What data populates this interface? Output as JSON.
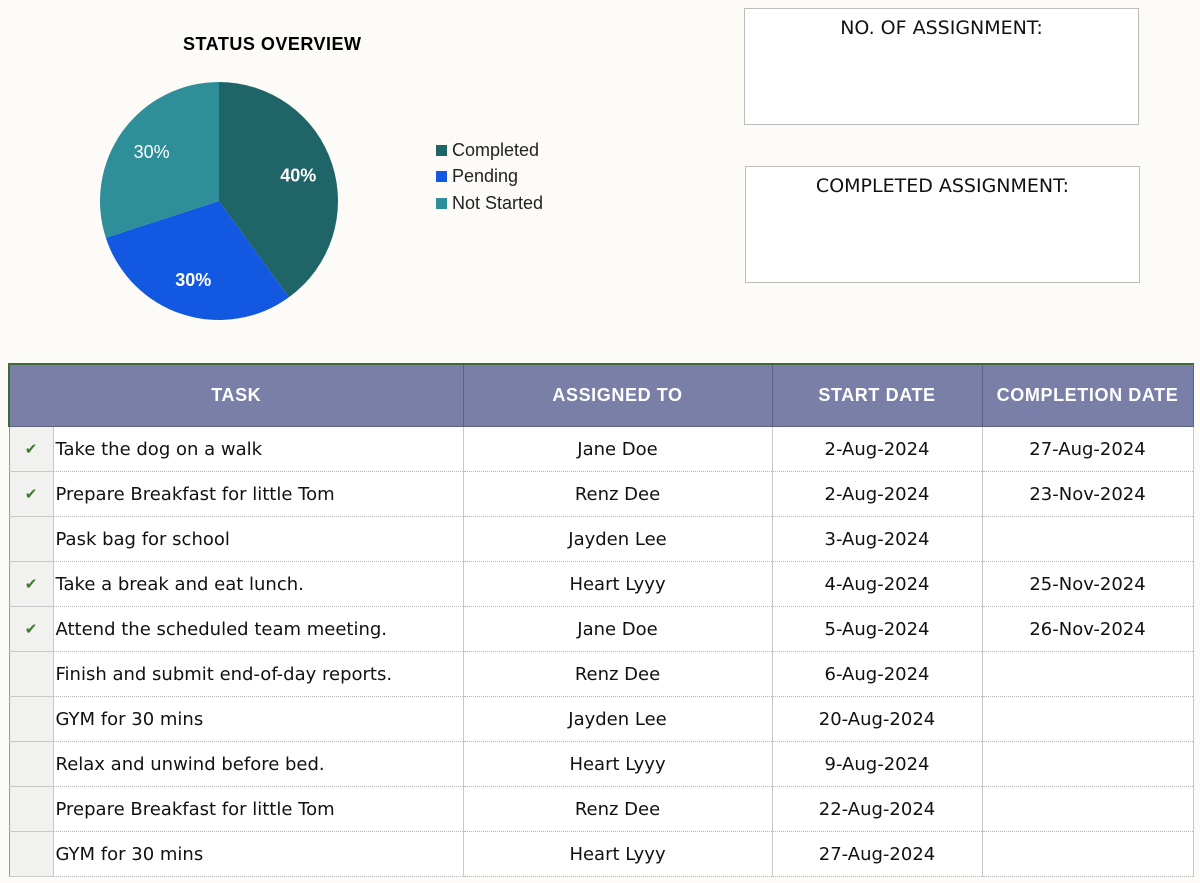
{
  "chart_data": {
    "type": "pie",
    "title": "STATUS OVERVIEW",
    "categories": [
      "Completed",
      "Pending",
      "Not Started"
    ],
    "values": [
      40,
      30,
      30
    ],
    "labels": [
      "40%",
      "30%",
      "30%"
    ],
    "colors": [
      "#1f6467",
      "#1258e0",
      "#2e8f98"
    ],
    "legend_position": "right"
  },
  "summary": {
    "no_of_assignment_label": "NO. OF ASSIGNMENT:",
    "completed_assignment_label": "COMPLETED ASSIGNMENT:"
  },
  "table": {
    "headers": {
      "task": "TASK",
      "assigned_to": "ASSIGNED TO",
      "start_date": "START DATE",
      "completion_date": "COMPLETION DATE"
    },
    "rows": [
      {
        "done": "✔",
        "task": "Take the dog on a walk",
        "assigned_to": "Jane Doe",
        "start_date": "2-Aug-2024",
        "completion_date": "27-Aug-2024"
      },
      {
        "done": "✔",
        "task": "Prepare Breakfast for little Tom",
        "assigned_to": "Renz Dee",
        "start_date": "2-Aug-2024",
        "completion_date": "23-Nov-2024"
      },
      {
        "done": "",
        "task": "Pask bag for school",
        "assigned_to": "Jayden Lee",
        "start_date": "3-Aug-2024",
        "completion_date": ""
      },
      {
        "done": "✔",
        "task": "Take a break and eat lunch.",
        "assigned_to": "Heart Lyyy",
        "start_date": "4-Aug-2024",
        "completion_date": "25-Nov-2024"
      },
      {
        "done": "✔",
        "task": "Attend the scheduled team meeting.",
        "assigned_to": "Jane Doe",
        "start_date": "5-Aug-2024",
        "completion_date": "26-Nov-2024"
      },
      {
        "done": "",
        "task": "Finish and submit end-of-day reports.",
        "assigned_to": "Renz Dee",
        "start_date": "6-Aug-2024",
        "completion_date": ""
      },
      {
        "done": "",
        "task": "GYM for 30 mins",
        "assigned_to": "Jayden Lee",
        "start_date": "20-Aug-2024",
        "completion_date": ""
      },
      {
        "done": "",
        "task": "Relax and unwind before bed.",
        "assigned_to": "Heart Lyyy",
        "start_date": "9-Aug-2024",
        "completion_date": ""
      },
      {
        "done": "",
        "task": "Prepare Breakfast for little Tom",
        "assigned_to": "Renz Dee",
        "start_date": "22-Aug-2024",
        "completion_date": ""
      },
      {
        "done": "",
        "task": "GYM for 30 mins",
        "assigned_to": "Heart Lyyy",
        "start_date": "27-Aug-2024",
        "completion_date": ""
      }
    ]
  }
}
